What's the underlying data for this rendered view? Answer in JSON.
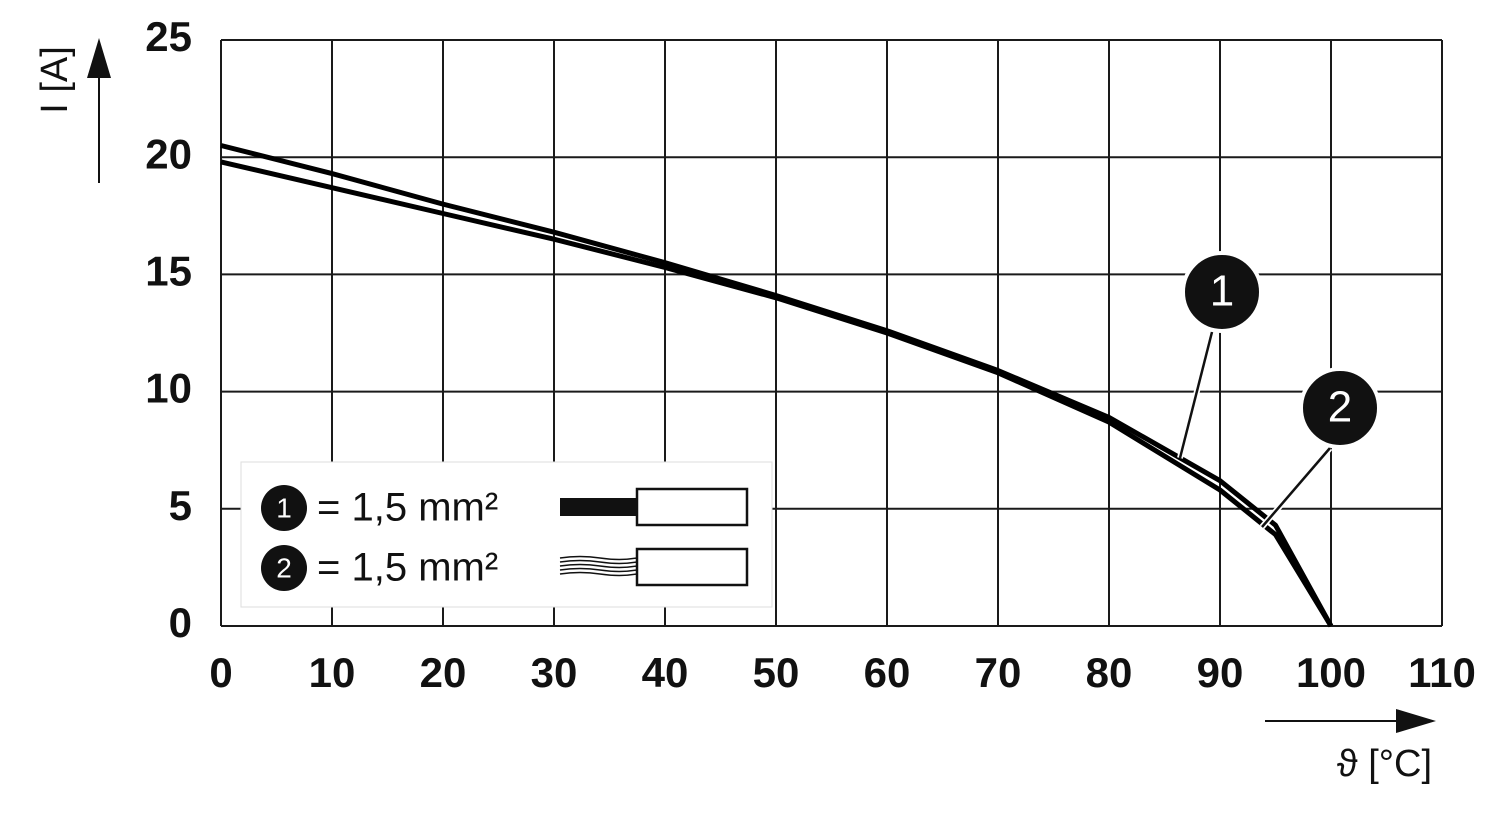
{
  "chart_data": {
    "type": "line",
    "y_label": "I [A]",
    "x_label": "ϑ [°C]",
    "x": [
      0,
      10,
      20,
      30,
      40,
      50,
      60,
      70,
      80,
      90,
      95,
      100
    ],
    "series": [
      {
        "name": "1",
        "label": "= 1,5 mm²",
        "color": "#000000",
        "values": [
          20.5,
          19.3,
          18.0,
          16.8,
          15.5,
          14.1,
          12.6,
          10.9,
          8.9,
          6.2,
          4.3,
          0
        ]
      },
      {
        "name": "2",
        "label": "= 1,5 mm²",
        "color": "#000000",
        "values": [
          19.8,
          18.7,
          17.6,
          16.5,
          15.3,
          14.0,
          12.5,
          10.8,
          8.7,
          5.8,
          3.9,
          0
        ]
      }
    ],
    "xlim": [
      0,
      110
    ],
    "xticks": [
      0,
      10,
      20,
      30,
      40,
      50,
      60,
      70,
      80,
      90,
      100,
      110
    ],
    "ylim": [
      0,
      25
    ],
    "yticks": [
      0,
      5,
      10,
      15,
      20,
      25
    ],
    "grid": true,
    "legend": "lower left"
  }
}
